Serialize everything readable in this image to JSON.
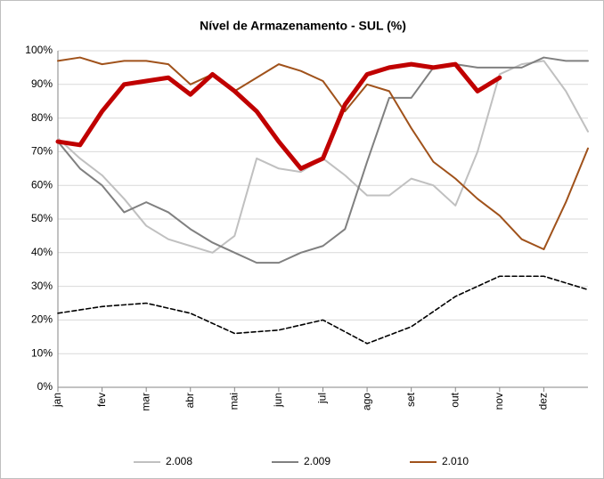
{
  "chart_data": {
    "type": "line",
    "title": "Nível de Armazenamento - SUL (%)",
    "x": [
      0,
      0.5,
      1,
      1.5,
      2,
      2.5,
      3,
      3.5,
      4,
      4.5,
      5,
      5.5,
      6,
      6.5,
      7,
      7.5,
      8,
      8.5,
      9,
      9.5,
      10,
      10.5,
      11,
      11.5,
      12
    ],
    "xlim": [
      0,
      12
    ],
    "xticks": [
      {
        "value": 0,
        "label": "jan"
      },
      {
        "value": 1,
        "label": "fev"
      },
      {
        "value": 2,
        "label": "mar"
      },
      {
        "value": 3,
        "label": "abr"
      },
      {
        "value": 4,
        "label": "mai"
      },
      {
        "value": 5,
        "label": "jun"
      },
      {
        "value": 6,
        "label": "jul"
      },
      {
        "value": 7,
        "label": "ago"
      },
      {
        "value": 8,
        "label": "set"
      },
      {
        "value": 9,
        "label": "out"
      },
      {
        "value": 10,
        "label": "nov"
      },
      {
        "value": 11,
        "label": "dez"
      }
    ],
    "ylim": [
      0,
      100
    ],
    "yticks": [
      {
        "value": 0,
        "label": "0%"
      },
      {
        "value": 10,
        "label": "10%"
      },
      {
        "value": 20,
        "label": "20%"
      },
      {
        "value": 30,
        "label": "30%"
      },
      {
        "value": 40,
        "label": "40%"
      },
      {
        "value": 50,
        "label": "50%"
      },
      {
        "value": 60,
        "label": "60%"
      },
      {
        "value": 70,
        "label": "70%"
      },
      {
        "value": 80,
        "label": "80%"
      },
      {
        "value": 90,
        "label": "90%"
      },
      {
        "value": 100,
        "label": "100%"
      }
    ],
    "grid": true,
    "legend": "bottom",
    "series": [
      {
        "name": "2.008",
        "color": "#c0c0c0",
        "width": 2,
        "values": [
          74,
          68,
          63,
          56,
          48,
          44,
          42,
          40,
          45,
          68,
          65,
          64,
          68,
          63,
          57,
          57,
          62,
          60,
          54,
          70,
          93,
          96,
          97,
          88,
          76
        ]
      },
      {
        "name": "2.009",
        "color": "#808080",
        "width": 2,
        "values": [
          73,
          65,
          60,
          52,
          55,
          52,
          47,
          43,
          40,
          37,
          37,
          40,
          42,
          47,
          67,
          86,
          86,
          95,
          96,
          95,
          95,
          95,
          98,
          97,
          97
        ]
      },
      {
        "name": "2.010",
        "color": "#a0521b",
        "width": 2,
        "values": [
          97,
          98,
          96,
          97,
          97,
          96,
          90,
          93,
          88,
          92,
          96,
          94,
          91,
          82,
          90,
          88,
          77,
          67,
          62,
          56,
          51,
          44,
          41,
          55,
          71
        ]
      },
      {
        "color": "#c00000",
        "width": 5,
        "values": [
          73,
          72,
          82,
          90,
          91,
          92,
          87,
          93,
          88,
          82,
          73,
          65,
          68,
          84,
          93,
          95,
          96,
          95,
          96,
          88,
          92,
          null,
          null,
          null,
          null
        ]
      },
      {
        "color": "#000000",
        "width": 1.6,
        "dash": true,
        "x": [
          0,
          1,
          2,
          3,
          4,
          5,
          6,
          7,
          8,
          9,
          10,
          11,
          12
        ],
        "values": [
          22,
          24,
          25,
          22,
          16,
          17,
          20,
          13,
          18,
          27,
          33,
          33,
          29
        ]
      }
    ]
  }
}
